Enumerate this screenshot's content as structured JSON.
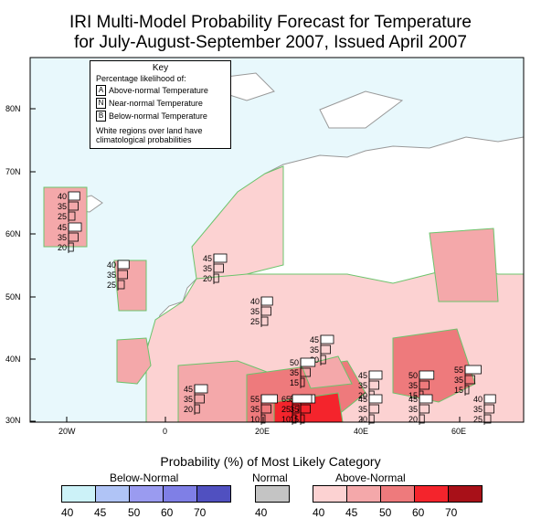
{
  "title_line1": "IRI Multi-Model Probability Forecast for Temperature",
  "title_line2": "for July-August-September 2007, Issued April 2007",
  "key": {
    "title": "Key",
    "subtitle": "Percentage likelihood of:",
    "items": [
      {
        "letter": "A",
        "label": "Above-normal Temperature"
      },
      {
        "letter": "N",
        "label": "Near-normal Temperature"
      },
      {
        "letter": "B",
        "label": "Below-normal Temperature"
      }
    ],
    "note": "White regions over land have climatological probabilities"
  },
  "lat_labels": [
    "80N",
    "70N",
    "60N",
    "50N",
    "40N",
    "30N"
  ],
  "lon_labels": [
    "20W",
    "0",
    "20E",
    "40E",
    "60E"
  ],
  "legend": {
    "title": "Probability (%) of Most Likely Category",
    "below_label": "Below-Normal",
    "normal_label": "Normal",
    "above_label": "Above-Normal",
    "below_ticks": [
      "40",
      "45",
      "50",
      "60",
      "70"
    ],
    "normal_ticks": [
      "40"
    ],
    "above_ticks": [
      "40",
      "45",
      "50",
      "60",
      "70"
    ],
    "below_colors": [
      "#ccf2f8",
      "#b0c4f6",
      "#9a9bf0",
      "#7f7fe6",
      "#5050c0"
    ],
    "normal_colors": [
      "#c4c4c4"
    ],
    "above_colors": [
      "#fcd2d2",
      "#f4a8aa",
      "#ee7a7c",
      "#f4242c",
      "#a81018"
    ]
  },
  "map": {
    "ocean_color": "#e8f8fc",
    "land_color": "#ffffff",
    "boundary_color": "#999999",
    "stations": [
      {
        "values": [
          "40",
          "35",
          "25"
        ]
      },
      {
        "values": [
          "45",
          "35",
          "20"
        ]
      },
      {
        "values": [
          "40",
          "35",
          "25"
        ]
      },
      {
        "values": [
          "45",
          "35",
          "20"
        ]
      },
      {
        "values": [
          "40",
          "35",
          "25"
        ]
      },
      {
        "values": [
          "45",
          "35",
          "20"
        ]
      },
      {
        "values": [
          "50",
          "35",
          "15"
        ]
      },
      {
        "values": [
          "45",
          "35",
          "20"
        ]
      },
      {
        "values": [
          "45",
          "35",
          "20"
        ]
      },
      {
        "values": [
          "50",
          "35",
          "15"
        ]
      },
      {
        "values": [
          "55",
          "35",
          "10"
        ]
      },
      {
        "values": [
          "50",
          "35",
          "15"
        ]
      },
      {
        "values": [
          "45",
          "35",
          "20"
        ]
      },
      {
        "values": [
          "45",
          "35",
          "20"
        ]
      },
      {
        "values": [
          "55",
          "35",
          "15"
        ]
      },
      {
        "values": [
          "65",
          "25",
          "10"
        ]
      },
      {
        "values": [
          "40",
          "35",
          "25"
        ]
      }
    ]
  }
}
